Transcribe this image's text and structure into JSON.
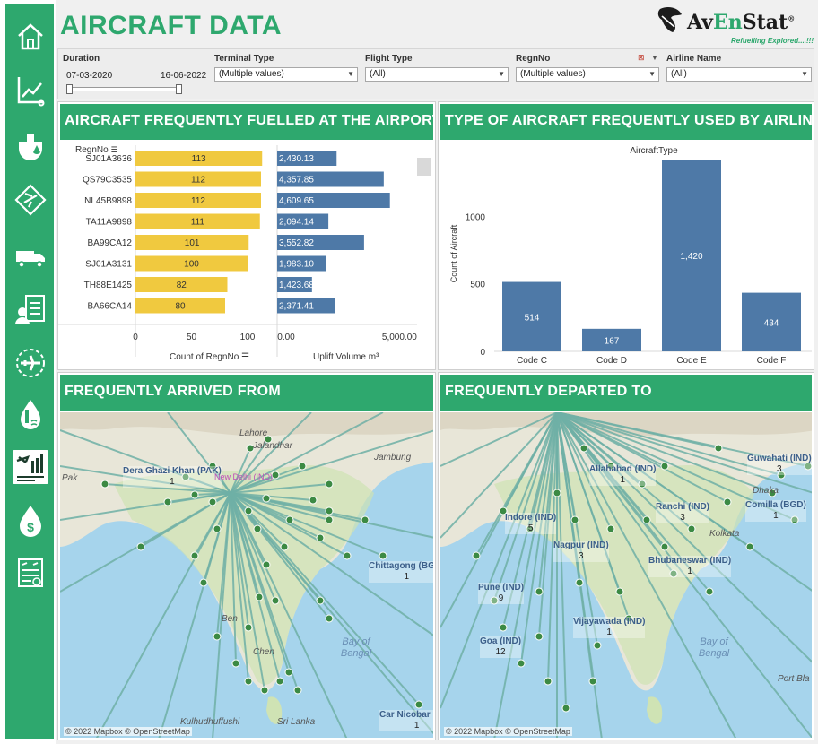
{
  "title": "AIRCRAFT DATA",
  "logo": {
    "name_part1": "Av",
    "name_part2": "En",
    "name_part3": "Stat",
    "registered": "®",
    "tagline": "Refuelling  Explored....!!!"
  },
  "sidebar": {
    "items": [
      {
        "name": "home-icon"
      },
      {
        "name": "analytics-icon"
      },
      {
        "name": "fuel-hydrant-icon"
      },
      {
        "name": "runway-icon"
      },
      {
        "name": "fuel-truck-icon"
      },
      {
        "name": "personnel-checklist-icon"
      },
      {
        "name": "aircraft-icon"
      },
      {
        "name": "temperature-water-icon"
      },
      {
        "name": "aircraft-data-icon",
        "active": true
      },
      {
        "name": "fuel-price-icon"
      },
      {
        "name": "flight-report-icon"
      }
    ]
  },
  "filters": {
    "duration": {
      "label": "Duration",
      "start": "07-03-2020",
      "end": "16-06-2022"
    },
    "terminal_type": {
      "label": "Terminal Type",
      "value": "(Multiple values)"
    },
    "flight_type": {
      "label": "Flight Type",
      "value": "(All)"
    },
    "regn_no": {
      "label": "RegnNo",
      "value": "(Multiple values)"
    },
    "airline_name": {
      "label": "Airline Name",
      "value": "(All)"
    }
  },
  "panels": {
    "fuelled": "AIRCRAFT FREQUENTLY FUELLED AT THE AIRPORT",
    "aircraft_type": "TYPE OF AIRCRAFT FREQUENTLY USED BY AIRLINE",
    "arrived": "FREQUENTLY ARRIVED FROM",
    "departed": "FREQUENTLY DEPARTED TO"
  },
  "fuelled_table": {
    "row_header": "RegnNo",
    "x1_label": "Count of RegnNo",
    "x2_label": "Uplift Volume m³",
    "x1_ticks": [
      "0",
      "50",
      "100"
    ],
    "x2_ticks": [
      "0.00",
      "5,000.00"
    ]
  },
  "chart_data": [
    {
      "type": "bar",
      "orientation": "horizontal",
      "categories": [
        "SJ01A3636",
        "QS79C3535",
        "NL45B9898",
        "TA11A9898",
        "BA99CA12",
        "SJ01A3131",
        "TH88E1425",
        "BA66CA14"
      ],
      "series": [
        {
          "name": "Count of RegnNo",
          "values": [
            113,
            112,
            112,
            111,
            101,
            100,
            82,
            80
          ],
          "labels": [
            "113",
            "112",
            "112",
            "111",
            "101",
            "100",
            "82",
            "80"
          ],
          "color": "#f0c93f"
        },
        {
          "name": "Uplift Volume m³",
          "values": [
            2430.13,
            4357.85,
            4609.65,
            2094.14,
            3552.82,
            1983.1,
            1423.68,
            2371.41
          ],
          "labels": [
            "2,430.13",
            "4,357.85",
            "4,609.65",
            "2,094.14",
            "3,552.82",
            "1,983.10",
            "1,423.68",
            "2,371.41"
          ],
          "color": "#4e79a7"
        }
      ],
      "xlim_series1": [
        0,
        120
      ],
      "xlim_series2": [
        0,
        5500
      ]
    },
    {
      "type": "bar",
      "title": "AircraftType",
      "ylabel": "Count of Aircraft",
      "categories": [
        "Code C",
        "Code D",
        "Code E",
        "Code F"
      ],
      "values": [
        514,
        167,
        1420,
        434
      ],
      "labels": [
        "514",
        "167",
        "1,420",
        "434"
      ],
      "yticks": [
        "0",
        "500",
        "1000"
      ],
      "ylim": [
        0,
        1460
      ],
      "color": "#4e79a7"
    }
  ],
  "arrived_map": {
    "credit": "© 2022 Mapbox  © OpenStreetMap",
    "places": [
      {
        "name": "Dera Ghazi Khan (PAK)",
        "count": "1"
      },
      {
        "name": "New Delhi (IND)",
        "count": ""
      },
      {
        "name": "Chittagong (BGD)",
        "count": "1"
      },
      {
        "name": "Car Nicobar (IND)",
        "count": "1"
      }
    ],
    "geo": [
      "Kulhudhuffushi",
      "Sri Lanka",
      "Bay of Bengal",
      "Lahore",
      "Jalandhar",
      "Jambung",
      "Pak",
      "Ben",
      "Chen"
    ]
  },
  "departed_map": {
    "credit": "© 2022 Mapbox  © OpenStreetMap",
    "places": [
      {
        "name": "Allahabad (IND)",
        "count": "1"
      },
      {
        "name": "Guwahati (IND)",
        "count": "3"
      },
      {
        "name": "Indore (IND)",
        "count": "5"
      },
      {
        "name": "Ranchi (IND)",
        "count": "3"
      },
      {
        "name": "Comilla (BGD)",
        "count": "1"
      },
      {
        "name": "Nagpur (IND)",
        "count": "3"
      },
      {
        "name": "Bhubaneswar (IND)",
        "count": "1"
      },
      {
        "name": "Pune (IND)",
        "count": "9"
      },
      {
        "name": "Vijayawada (IND)",
        "count": "1"
      },
      {
        "name": "Goa (IND)",
        "count": "12"
      }
    ],
    "geo": [
      "Bay of Bengal",
      "Port Bla",
      "Dhaka",
      "Kolkata"
    ]
  }
}
